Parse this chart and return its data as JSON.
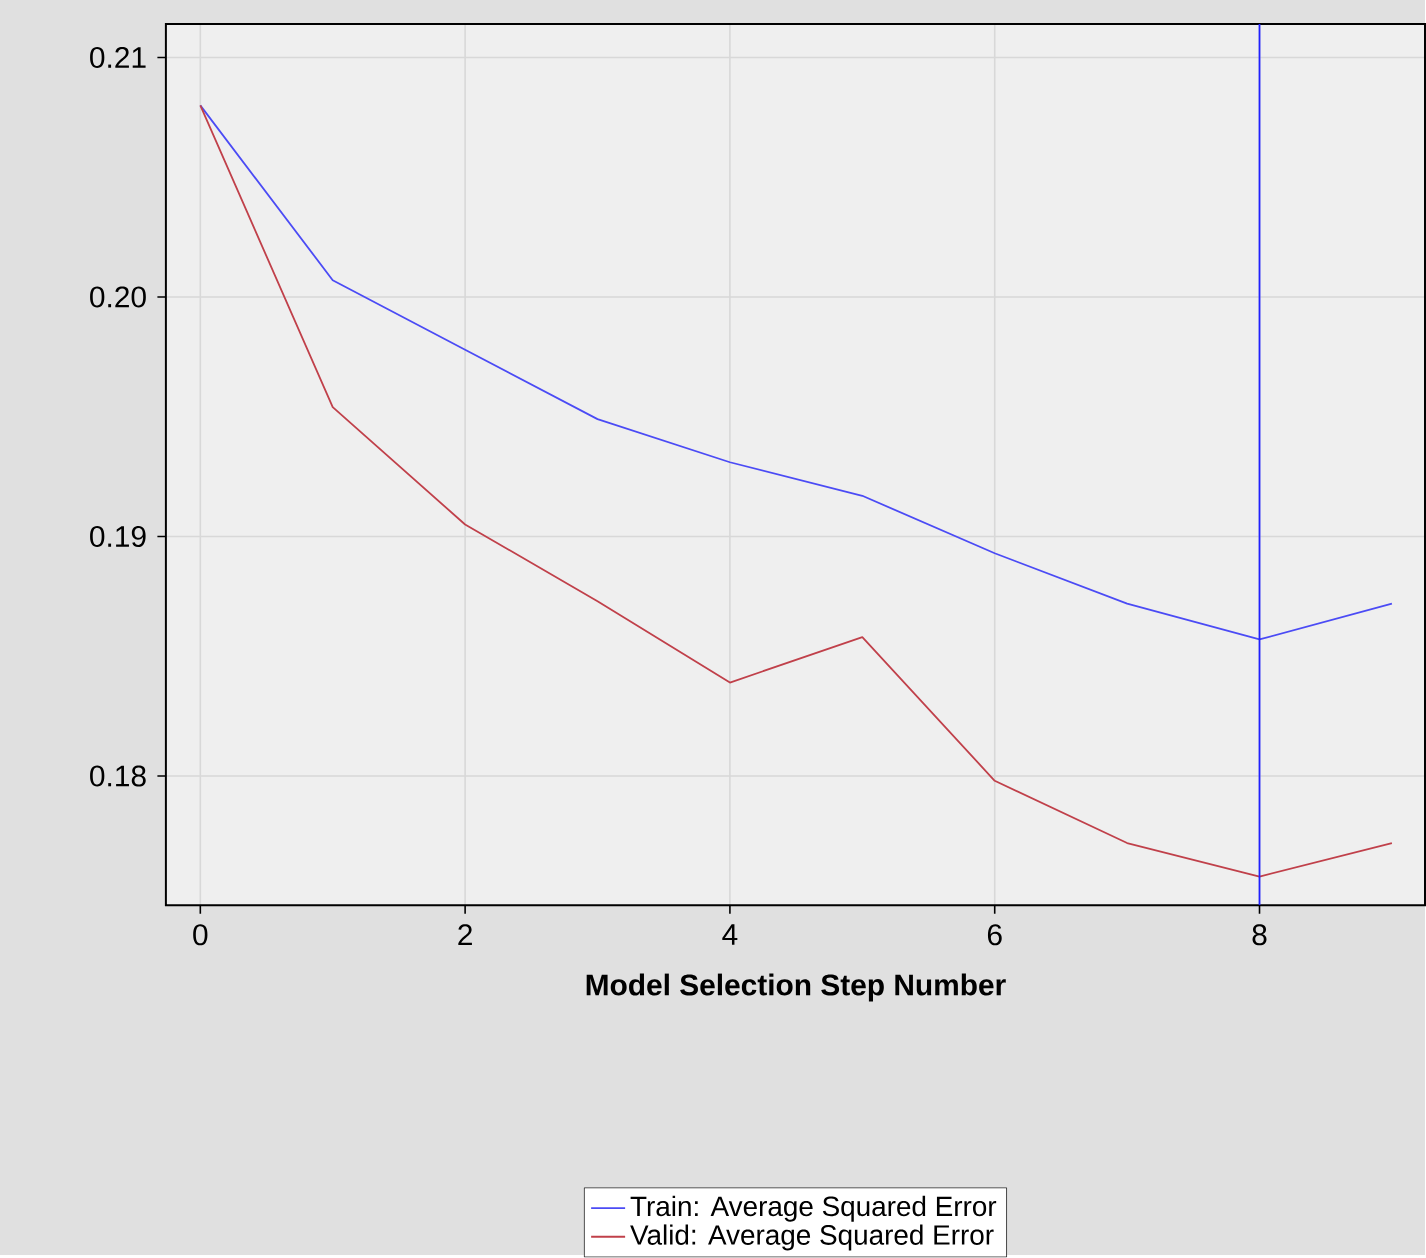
{
  "chart_data": {
    "type": "line",
    "xlabel": "Model Selection Step Number",
    "x": [
      0,
      1,
      2,
      3,
      4,
      5,
      6,
      7,
      8,
      9
    ],
    "series": [
      {
        "name": "Train: Average Squared Error",
        "color": "#4b4bf5",
        "values": [
          0.208,
          0.2007,
          0.1978,
          0.1949,
          0.1931,
          0.1917,
          0.1893,
          0.1872,
          0.1857,
          0.1872
        ]
      },
      {
        "name": "Valid: Average Squared Error",
        "color": "#c0404a",
        "values": [
          0.208,
          0.1954,
          0.1905,
          0.1873,
          0.1839,
          0.1858,
          0.1798,
          0.1772,
          0.1758,
          0.1772
        ]
      }
    ],
    "xlim": [
      -0.26,
      9.25
    ],
    "ylim": [
      0.1746,
      0.2114
    ],
    "xticks": [
      0,
      2,
      4,
      6,
      8
    ],
    "yticks": [
      {
        "value": 0.18,
        "label": "0.18"
      },
      {
        "value": 0.19,
        "label": "0.19"
      },
      {
        "value": 0.2,
        "label": "0.20"
      },
      {
        "value": 0.21,
        "label": "0.21"
      }
    ],
    "ref_lines": [
      {
        "axis": "x",
        "value": 8,
        "color": "#2020ff"
      }
    ],
    "grid": true,
    "legend": "bottom",
    "line_style": "solid",
    "marker": "none"
  }
}
